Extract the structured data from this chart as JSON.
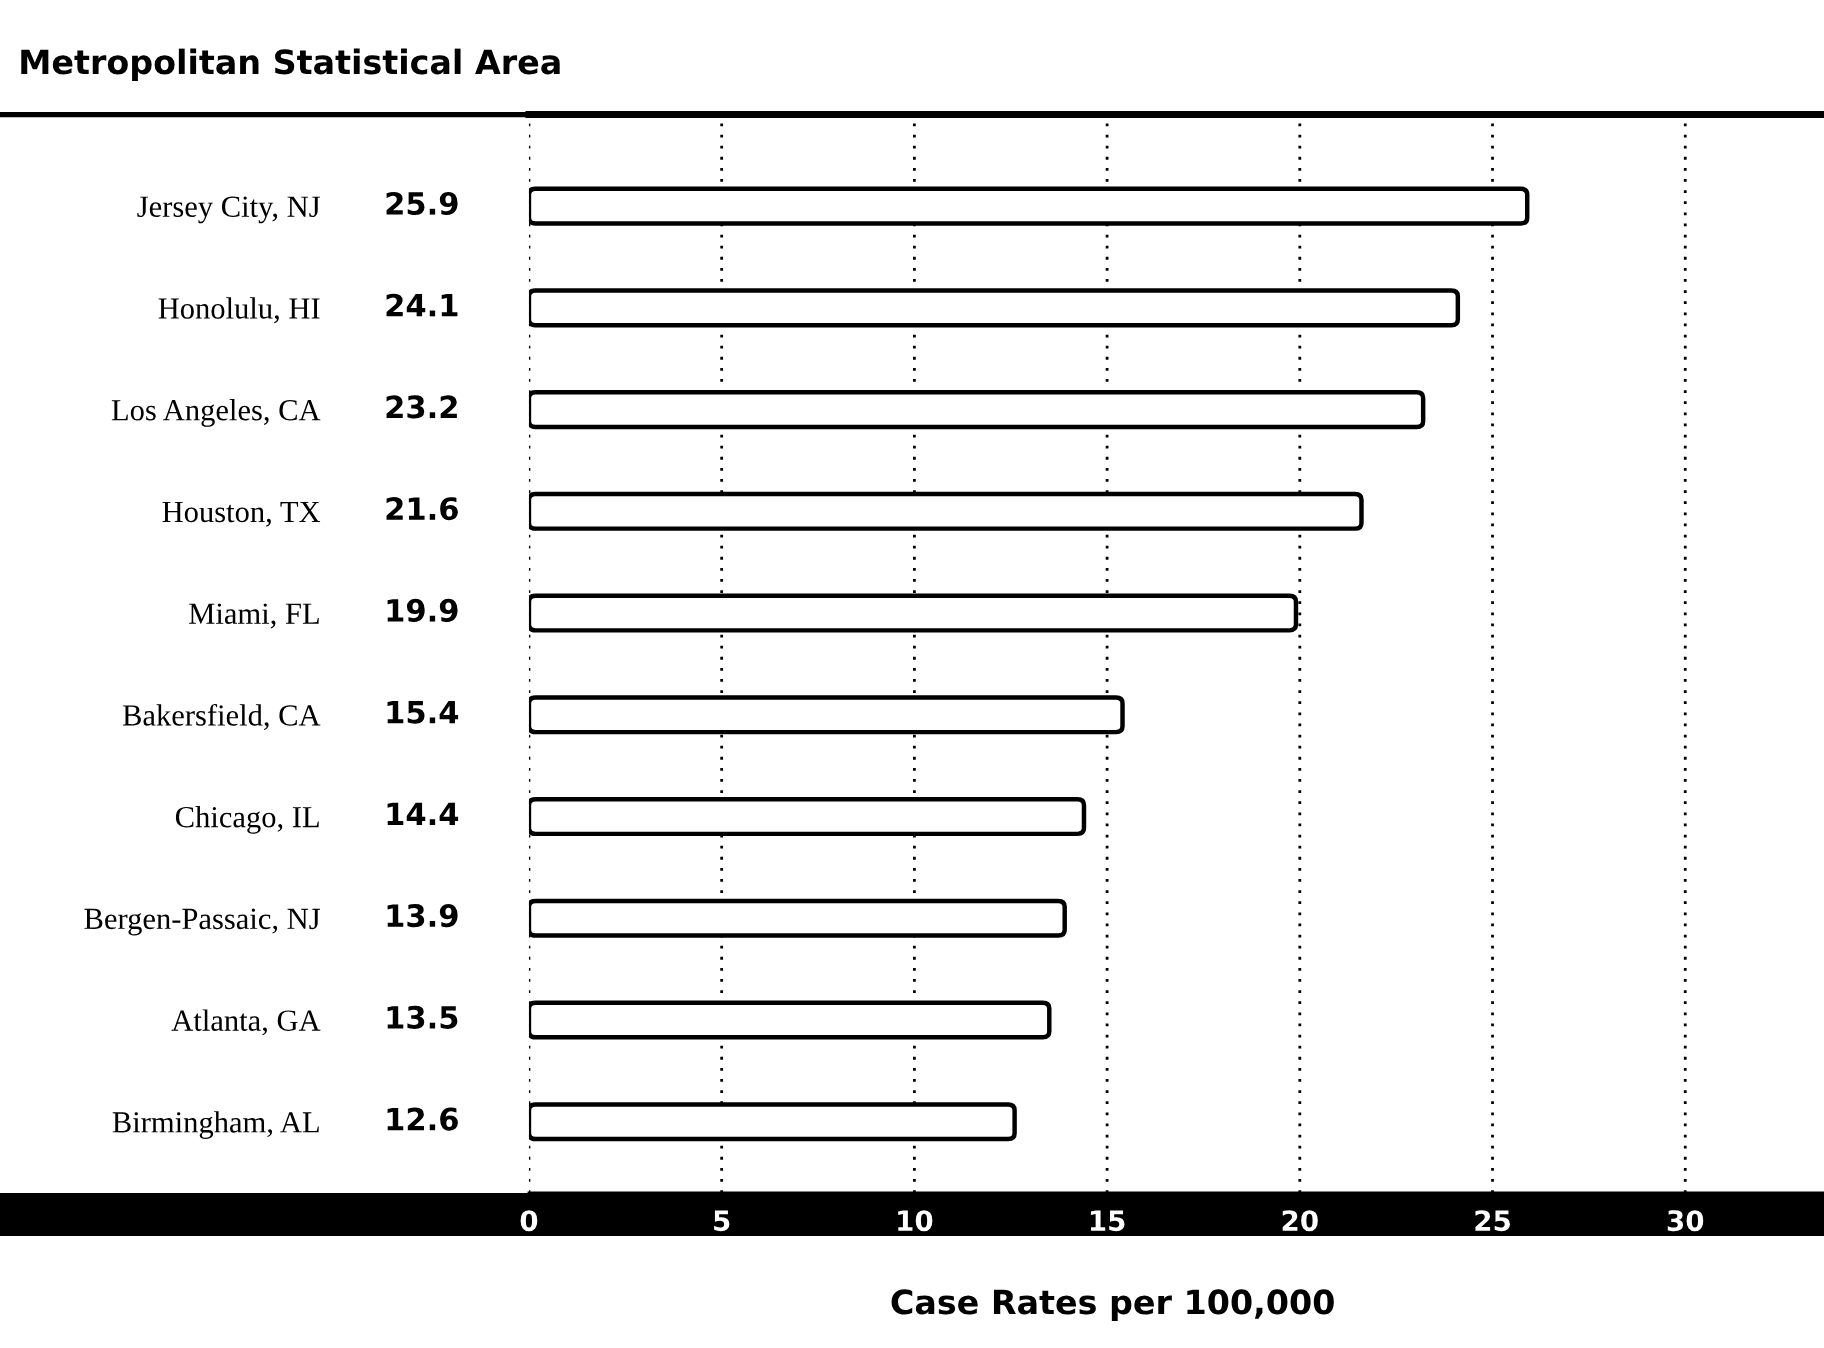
{
  "chart_data": {
    "type": "bar",
    "orientation": "horizontal",
    "title": "Metropolitan Statistical Area",
    "xlabel": "Case Rates per 100,000",
    "categories": [
      "Jersey City, NJ",
      "Honolulu, HI",
      "Los Angeles, CA",
      "Houston, TX",
      "Miami, FL",
      "Bakersfield, CA",
      "Chicago, IL",
      "Bergen-Passaic, NJ",
      "Atlanta, GA",
      "Birmingham, AL"
    ],
    "values": [
      25.9,
      24.1,
      23.2,
      21.6,
      19.9,
      15.4,
      14.4,
      13.9,
      13.5,
      12.6
    ],
    "color": "#ffffff",
    "xlim": [
      0,
      33.6
    ],
    "xticks": [
      0,
      5,
      10,
      15,
      20,
      25,
      30
    ],
    "grid": "x",
    "data_labels": true
  }
}
